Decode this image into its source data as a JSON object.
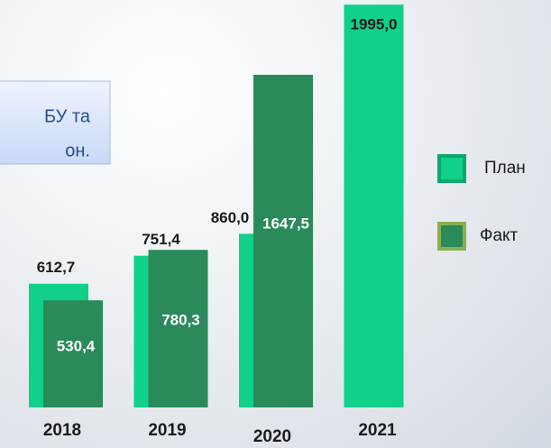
{
  "chart_data": {
    "type": "bar",
    "categories": [
      "2018",
      "2019",
      "2020",
      "2021"
    ],
    "series": [
      {
        "name": "План",
        "color": "#10d08a",
        "values": [
          612.7,
          751.4,
          860.0,
          1995.0
        ],
        "value_labels": [
          "612,7",
          "751,4",
          "860,0",
          "1995,0"
        ]
      },
      {
        "name": "Факт",
        "color": "#2a8a5a",
        "values": [
          530.4,
          780.3,
          1647.5,
          null
        ],
        "value_labels": [
          "530,4",
          "780,3",
          "1647,5",
          null
        ]
      }
    ],
    "callout": [
      "БУ та",
      "он."
    ]
  }
}
